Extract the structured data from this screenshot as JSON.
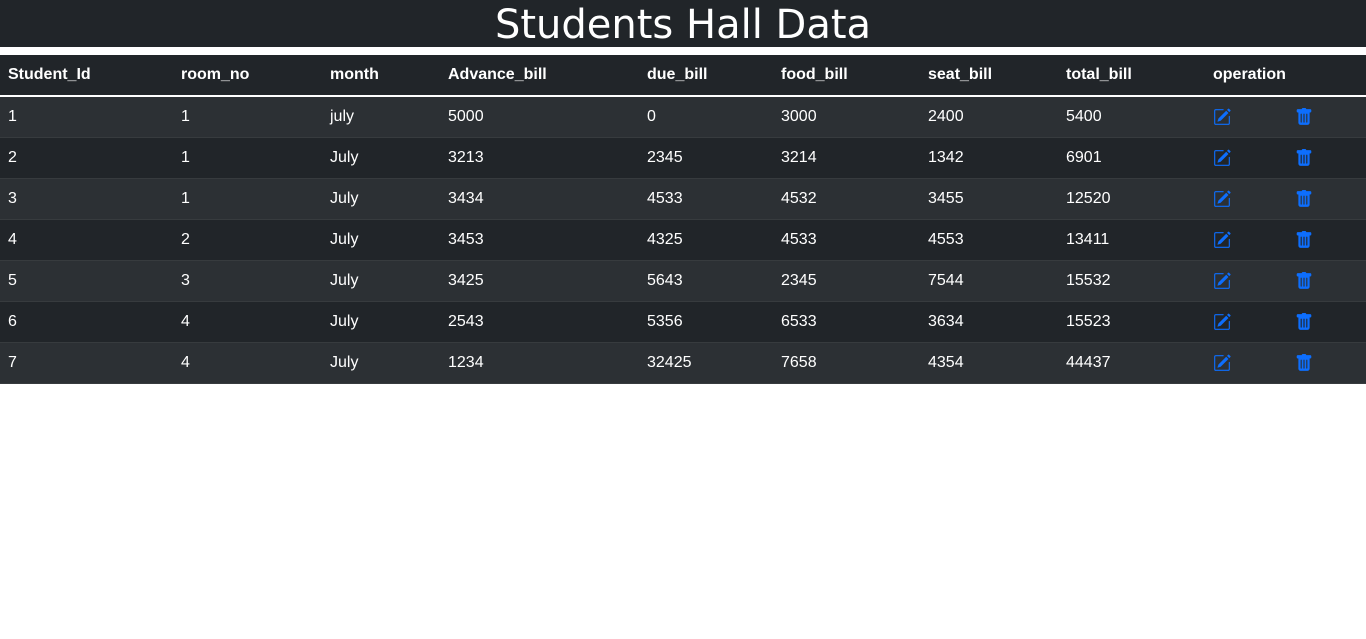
{
  "page": {
    "title": "Students Hall Data"
  },
  "table": {
    "headers": [
      "Student_Id",
      "room_no",
      "month",
      "Advance_bill",
      "due_bill",
      "food_bill",
      "seat_bill",
      "total_bill",
      "operation"
    ],
    "rows": [
      [
        "1",
        "1",
        "july",
        "5000",
        "0",
        "3000",
        "2400",
        "5400"
      ],
      [
        "2",
        "1",
        "July",
        "3213",
        "2345",
        "3214",
        "1342",
        "6901"
      ],
      [
        "3",
        "1",
        "July",
        "3434",
        "4533",
        "4532",
        "3455",
        "12520"
      ],
      [
        "4",
        "2",
        "July",
        "3453",
        "4325",
        "4533",
        "4553",
        "13411"
      ],
      [
        "5",
        "3",
        "July",
        "3425",
        "5643",
        "2345",
        "7544",
        "15532"
      ],
      [
        "6",
        "4",
        "July",
        "2543",
        "5356",
        "6533",
        "3634",
        "15523"
      ],
      [
        "7",
        "4",
        "July",
        "1234",
        "32425",
        "7658",
        "4354",
        "44437"
      ]
    ],
    "row_icons": {
      "edit": "edit-icon",
      "delete": "trash-icon"
    }
  },
  "colors": {
    "header_bg": "#212529",
    "row_striped": "#2c3034",
    "icon_accent": "#0d6efd"
  }
}
